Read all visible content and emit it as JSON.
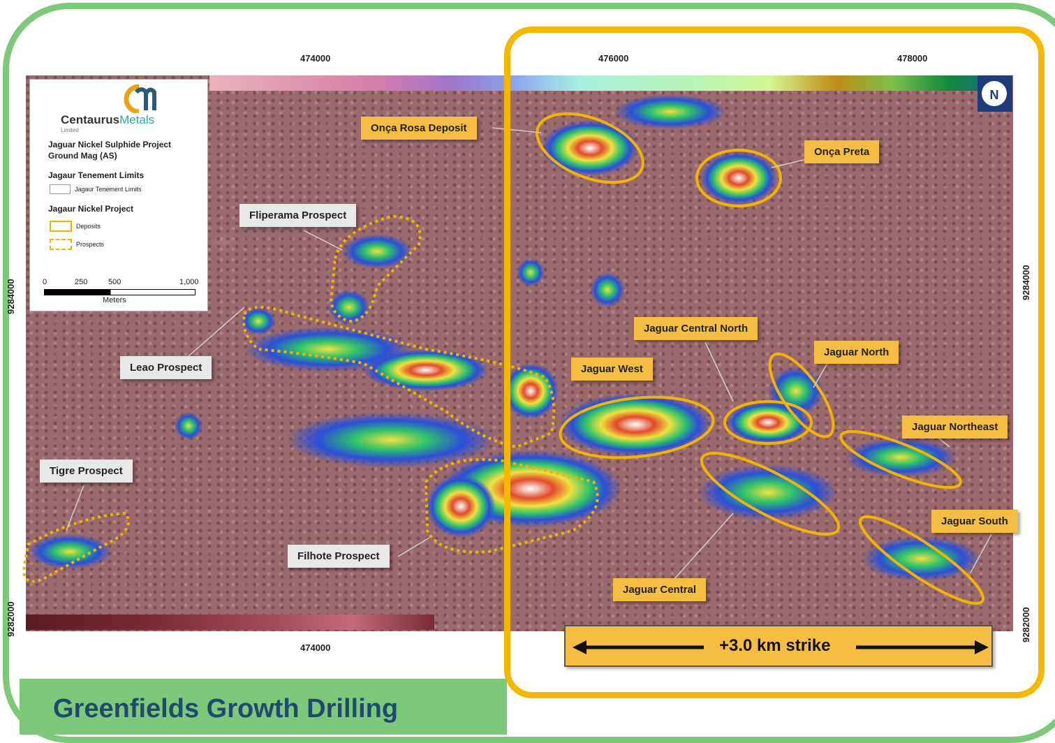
{
  "legend": {
    "brand_bold": "Centaurus",
    "brand_light": "Metals",
    "brand_sub": "Limited",
    "project_title": "Jaguar Nickel Sulphide Project",
    "layer_title": "Ground Mag (AS)",
    "tenement_heading": "Jagaur Tenement Limits",
    "tenement_item": "Jagaur Tenement Limits",
    "nickel_heading": "Jagaur Nickel Project",
    "deposits_item": "Deposits",
    "prospects_item": "Prospects",
    "scale": {
      "labels": [
        "0",
        "250",
        "500",
        "1,000"
      ],
      "unit": "Meters"
    }
  },
  "axes": {
    "top_ticks": [
      "474000",
      "476000",
      "478000"
    ],
    "bottom_ticks": [
      "474000"
    ],
    "left_ticks": [
      "9284000",
      "9282000"
    ],
    "right_ticks": [
      "9284000",
      "9282000"
    ]
  },
  "prospects": [
    {
      "name": "Fliperama Prospect"
    },
    {
      "name": "Leao Prospect"
    },
    {
      "name": "Tigre Prospect"
    },
    {
      "name": "Filhote  Prospect"
    }
  ],
  "deposits": [
    {
      "name": "Onça Rosa Deposit"
    },
    {
      "name": "Onça Preta"
    },
    {
      "name": "Jaguar Central North"
    },
    {
      "name": "Jaguar North"
    },
    {
      "name": "Jaguar West"
    },
    {
      "name": "Jaguar Northeast"
    },
    {
      "name": "Jaguar South"
    },
    {
      "name": "Jaguar Central"
    }
  ],
  "north_arrow": "N",
  "strike_label": "+3.0 km strike",
  "banner": "Greenfields Growth Drilling",
  "colors": {
    "outer_frame": "#7cc97a",
    "highlight_frame": "#f5b800",
    "deposit_outline": "#f0b400",
    "map_background": "#9b6a6e",
    "banner_text": "#1f4a6e"
  }
}
